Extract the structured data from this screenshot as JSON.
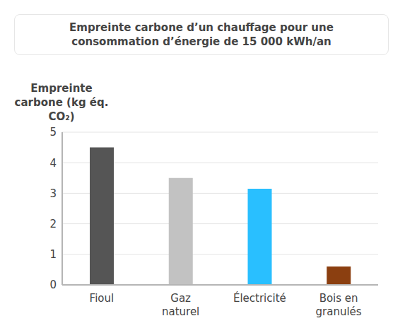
{
  "chart_data": {
    "type": "bar",
    "title": "Empreinte carbone d’un chauffage pour une consommation d’énergie de 15 000 kWh/an",
    "y_label": "Empreinte carbone (kg éq. CO₂)",
    "categories": [
      "Fioul",
      "Gaz naturel",
      "Électricité",
      "Bois en granulés"
    ],
    "values": [
      4.5,
      3.5,
      3.15,
      0.6
    ],
    "colors": [
      "#555555",
      "#c2c2c2",
      "#29bfff",
      "#8b3f10"
    ],
    "ylim": [
      0,
      5
    ],
    "yticks": [
      0,
      1,
      2,
      3,
      4,
      5
    ],
    "grid": true
  }
}
